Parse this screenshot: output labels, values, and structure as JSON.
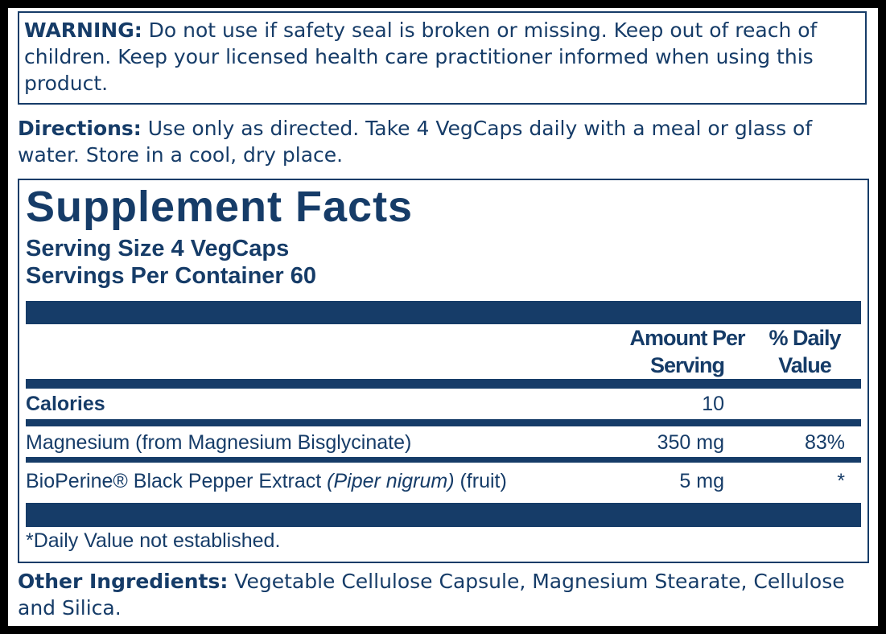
{
  "warning": {
    "label": "WARNING:",
    "text": "Do not use if safety seal is broken or missing. Keep out of reach of children. Keep your licensed health care practitioner informed when using this product."
  },
  "directions": {
    "label": "Directions:",
    "text": "Use only as directed. Take 4 VegCaps daily with a meal or glass of water. Store in a cool, dry place."
  },
  "facts": {
    "title": "Supplement Facts",
    "serving_size": "Serving Size 4 VegCaps",
    "servings_per_container": "Servings Per Container 60",
    "headers": {
      "amount": "Amount Per Serving",
      "daily_value": "% Daily Value"
    },
    "rows": [
      {
        "name": "Calories",
        "amount": "10"
      },
      {
        "name": "Magnesium (from Magnesium Bisglycinate)",
        "amount": "350 mg",
        "daily_value": "83%"
      },
      {
        "name": "BioPerine® Black Pepper Extract",
        "name_italic": "(Piper nigrum)",
        "name_suffix": "(fruit)",
        "amount": "5 mg",
        "daily_value": "*"
      }
    ],
    "footnote": "*Daily Value not established."
  },
  "other_ingredients": {
    "label": "Other Ingredients:",
    "text": "Vegetable Cellulose Capsule, Magnesium Stearate, Cellulose and Silica."
  }
}
